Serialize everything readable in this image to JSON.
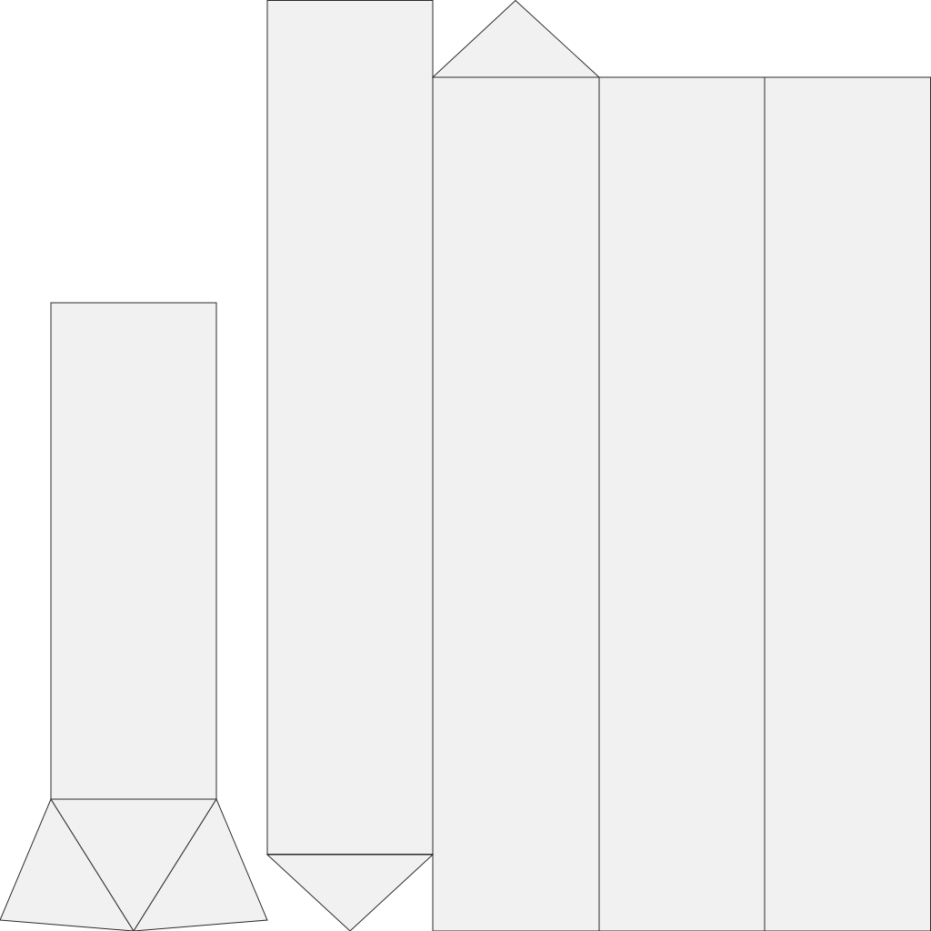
{
  "diagram": {
    "kind": "net",
    "colors": {
      "face_fill": "#f1f1f1",
      "edge_stroke": "#2b2b2b",
      "background": "#ffffff"
    },
    "left_net": {
      "rectangles": 1,
      "triangles": 3
    },
    "right_net": {
      "rectangles": 4,
      "triangles": 2
    }
  }
}
